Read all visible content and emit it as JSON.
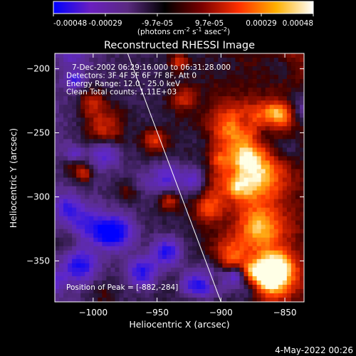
{
  "colorbar": {
    "ticks": [
      "-0.00048",
      "-0.00029",
      "-9.7e-05",
      "9.7e-05",
      "0.00029",
      "0.00048"
    ],
    "units_text": "(photons cm",
    "units_sup1": "-2",
    "units_mid1": " s",
    "units_sup2": "-1",
    "units_mid2": " asec",
    "units_sup3": "-2",
    "units_end": ")",
    "colors": [
      "#0000ff",
      "#6a1fc0",
      "#5a2a80",
      "#000000",
      "#7a0000",
      "#ff3000",
      "#ffb000",
      "#ffffff"
    ]
  },
  "chart_data": {
    "type": "heatmap",
    "title": "Reconstructed RHESSI Image",
    "xlabel": "Heliocentric X (arcsec)",
    "ylabel": "Heliocentric Y (arcsec)",
    "xlim": [
      -1030,
      -835
    ],
    "ylim": [
      -382,
      -188
    ],
    "xticks": [
      -1000,
      -950,
      -900,
      -850
    ],
    "yticks": [
      -200,
      -250,
      -300,
      -350
    ],
    "xtick_labels": [
      "−1000",
      "−950",
      "−900",
      "−850"
    ],
    "ytick_labels": [
      "−200",
      "−250",
      "−300",
      "−350"
    ],
    "vmin": -0.00048,
    "vmax": 0.00048,
    "peak": [
      -882,
      -284
    ],
    "info_lines": [
      "7-Dec-2002 06:29:16.000 to 06:31:28.000",
      "Detectors: 3F 4F 5F 6F 7F 8F, Att 0",
      "Energy Range: 12.0 - 25.0 keV",
      "Clean     Total counts: 1.11E+03"
    ],
    "peak_label": "Position of Peak = [-882,-284]",
    "limb_line": [
      [
        -973,
        -188
      ],
      [
        -900,
        -382
      ]
    ]
  },
  "footer": {
    "date": "4-May-2022 00:26"
  }
}
